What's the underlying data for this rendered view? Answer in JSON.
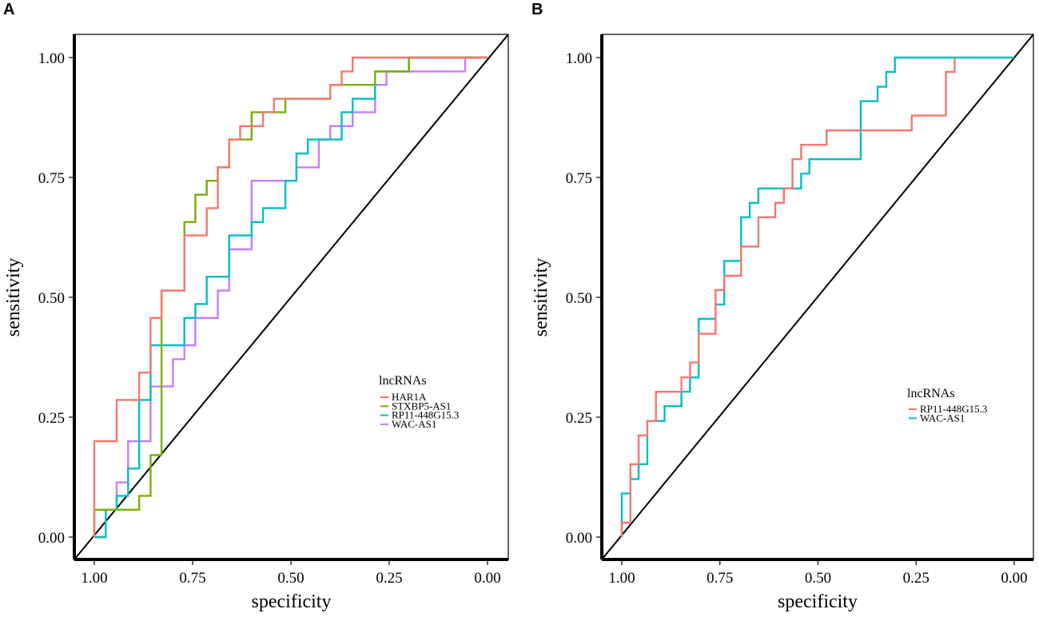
{
  "chart_data": [
    {
      "type": "line",
      "panel_label": "A",
      "xlabel": "specificity",
      "ylabel": "sensitivity",
      "xlim": [
        1.0,
        0.0
      ],
      "ylim": [
        0.0,
        1.0
      ],
      "x_ticks": [
        "1.00",
        "0.75",
        "0.50",
        "0.25",
        "0.00"
      ],
      "y_ticks": [
        "0.00",
        "0.25",
        "0.50",
        "0.75",
        "1.00"
      ],
      "legend_title": "lncRNAs",
      "legend_position": "right",
      "reference_line": true,
      "series": [
        {
          "name": "HAR1A",
          "color": "#F8766D",
          "points": [
            [
              1.0,
              0.0
            ],
            [
              1.0,
              0.2
            ],
            [
              0.943,
              0.2
            ],
            [
              0.943,
              0.286
            ],
            [
              0.886,
              0.286
            ],
            [
              0.886,
              0.343
            ],
            [
              0.857,
              0.343
            ],
            [
              0.857,
              0.457
            ],
            [
              0.829,
              0.457
            ],
            [
              0.829,
              0.514
            ],
            [
              0.771,
              0.514
            ],
            [
              0.771,
              0.629
            ],
            [
              0.714,
              0.629
            ],
            [
              0.714,
              0.686
            ],
            [
              0.686,
              0.686
            ],
            [
              0.686,
              0.771
            ],
            [
              0.657,
              0.771
            ],
            [
              0.657,
              0.829
            ],
            [
              0.629,
              0.829
            ],
            [
              0.629,
              0.857
            ],
            [
              0.571,
              0.857
            ],
            [
              0.571,
              0.886
            ],
            [
              0.543,
              0.886
            ],
            [
              0.543,
              0.914
            ],
            [
              0.4,
              0.914
            ],
            [
              0.4,
              0.943
            ],
            [
              0.371,
              0.943
            ],
            [
              0.371,
              0.971
            ],
            [
              0.343,
              0.971
            ],
            [
              0.343,
              1.0
            ],
            [
              0.0,
              1.0
            ]
          ]
        },
        {
          "name": "STXBP5-AS1",
          "color": "#7CAE00",
          "points": [
            [
              1.0,
              0.0
            ],
            [
              1.0,
              0.057
            ],
            [
              0.886,
              0.057
            ],
            [
              0.886,
              0.086
            ],
            [
              0.857,
              0.086
            ],
            [
              0.857,
              0.171
            ],
            [
              0.829,
              0.171
            ],
            [
              0.829,
              0.514
            ],
            [
              0.771,
              0.514
            ],
            [
              0.771,
              0.657
            ],
            [
              0.743,
              0.657
            ],
            [
              0.743,
              0.714
            ],
            [
              0.714,
              0.714
            ],
            [
              0.714,
              0.743
            ],
            [
              0.686,
              0.743
            ],
            [
              0.686,
              0.771
            ],
            [
              0.657,
              0.771
            ],
            [
              0.657,
              0.829
            ],
            [
              0.6,
              0.829
            ],
            [
              0.6,
              0.886
            ],
            [
              0.514,
              0.886
            ],
            [
              0.514,
              0.914
            ],
            [
              0.4,
              0.914
            ],
            [
              0.4,
              0.943
            ],
            [
              0.286,
              0.943
            ],
            [
              0.286,
              0.971
            ],
            [
              0.2,
              0.971
            ],
            [
              0.2,
              1.0
            ],
            [
              0.0,
              1.0
            ]
          ]
        },
        {
          "name": "RP11-448G15.3",
          "color": "#00BFC4",
          "points": [
            [
              1.0,
              0.0
            ],
            [
              0.971,
              0.0
            ],
            [
              0.971,
              0.057
            ],
            [
              0.943,
              0.057
            ],
            [
              0.943,
              0.086
            ],
            [
              0.914,
              0.086
            ],
            [
              0.914,
              0.143
            ],
            [
              0.886,
              0.143
            ],
            [
              0.886,
              0.286
            ],
            [
              0.857,
              0.286
            ],
            [
              0.857,
              0.4
            ],
            [
              0.771,
              0.4
            ],
            [
              0.771,
              0.457
            ],
            [
              0.743,
              0.457
            ],
            [
              0.743,
              0.486
            ],
            [
              0.714,
              0.486
            ],
            [
              0.714,
              0.543
            ],
            [
              0.657,
              0.543
            ],
            [
              0.657,
              0.629
            ],
            [
              0.6,
              0.629
            ],
            [
              0.6,
              0.657
            ],
            [
              0.571,
              0.657
            ],
            [
              0.571,
              0.686
            ],
            [
              0.514,
              0.686
            ],
            [
              0.514,
              0.743
            ],
            [
              0.486,
              0.743
            ],
            [
              0.486,
              0.8
            ],
            [
              0.457,
              0.8
            ],
            [
              0.457,
              0.829
            ],
            [
              0.371,
              0.829
            ],
            [
              0.371,
              0.886
            ],
            [
              0.343,
              0.886
            ],
            [
              0.343,
              0.914
            ],
            [
              0.286,
              0.914
            ],
            [
              0.286,
              0.971
            ],
            [
              0.2,
              0.971
            ],
            [
              0.2,
              1.0
            ],
            [
              0.0,
              1.0
            ]
          ]
        },
        {
          "name": "WAC-AS1",
          "color": "#C77CFF",
          "points": [
            [
              1.0,
              0.0
            ],
            [
              0.971,
              0.0
            ],
            [
              0.971,
              0.057
            ],
            [
              0.943,
              0.057
            ],
            [
              0.943,
              0.114
            ],
            [
              0.914,
              0.114
            ],
            [
              0.914,
              0.2
            ],
            [
              0.857,
              0.2
            ],
            [
              0.857,
              0.314
            ],
            [
              0.8,
              0.314
            ],
            [
              0.8,
              0.371
            ],
            [
              0.771,
              0.371
            ],
            [
              0.771,
              0.4
            ],
            [
              0.743,
              0.4
            ],
            [
              0.743,
              0.457
            ],
            [
              0.686,
              0.457
            ],
            [
              0.686,
              0.514
            ],
            [
              0.657,
              0.514
            ],
            [
              0.657,
              0.6
            ],
            [
              0.6,
              0.6
            ],
            [
              0.6,
              0.743
            ],
            [
              0.486,
              0.743
            ],
            [
              0.486,
              0.771
            ],
            [
              0.429,
              0.771
            ],
            [
              0.429,
              0.829
            ],
            [
              0.4,
              0.829
            ],
            [
              0.4,
              0.857
            ],
            [
              0.343,
              0.857
            ],
            [
              0.343,
              0.886
            ],
            [
              0.286,
              0.886
            ],
            [
              0.286,
              0.943
            ],
            [
              0.257,
              0.943
            ],
            [
              0.257,
              0.971
            ],
            [
              0.057,
              0.971
            ],
            [
              0.057,
              1.0
            ],
            [
              0.0,
              1.0
            ]
          ]
        }
      ]
    },
    {
      "type": "line",
      "panel_label": "B",
      "xlabel": "specificity",
      "ylabel": "sensitivity",
      "xlim": [
        1.0,
        0.0
      ],
      "ylim": [
        0.0,
        1.0
      ],
      "x_ticks": [
        "1.00",
        "0.75",
        "0.50",
        "0.25",
        "0.00"
      ],
      "y_ticks": [
        "0.00",
        "0.25",
        "0.50",
        "0.75",
        "1.00"
      ],
      "legend_title": "lncRNAs",
      "legend_position": "right",
      "reference_line": true,
      "series": [
        {
          "name": "RP11-448G15.3",
          "color": "#F8766D",
          "points": [
            [
              1.0,
              0.0
            ],
            [
              1.0,
              0.03
            ],
            [
              0.978,
              0.03
            ],
            [
              0.978,
              0.152
            ],
            [
              0.957,
              0.152
            ],
            [
              0.957,
              0.212
            ],
            [
              0.935,
              0.212
            ],
            [
              0.935,
              0.242
            ],
            [
              0.913,
              0.242
            ],
            [
              0.913,
              0.303
            ],
            [
              0.848,
              0.303
            ],
            [
              0.848,
              0.333
            ],
            [
              0.826,
              0.333
            ],
            [
              0.826,
              0.364
            ],
            [
              0.804,
              0.364
            ],
            [
              0.804,
              0.424
            ],
            [
              0.761,
              0.424
            ],
            [
              0.761,
              0.515
            ],
            [
              0.739,
              0.515
            ],
            [
              0.739,
              0.545
            ],
            [
              0.696,
              0.545
            ],
            [
              0.696,
              0.606
            ],
            [
              0.652,
              0.606
            ],
            [
              0.652,
              0.667
            ],
            [
              0.609,
              0.667
            ],
            [
              0.609,
              0.697
            ],
            [
              0.587,
              0.697
            ],
            [
              0.587,
              0.727
            ],
            [
              0.565,
              0.727
            ],
            [
              0.565,
              0.788
            ],
            [
              0.543,
              0.788
            ],
            [
              0.543,
              0.818
            ],
            [
              0.478,
              0.818
            ],
            [
              0.478,
              0.848
            ],
            [
              0.261,
              0.848
            ],
            [
              0.261,
              0.879
            ],
            [
              0.174,
              0.879
            ],
            [
              0.174,
              0.97
            ],
            [
              0.152,
              0.97
            ],
            [
              0.152,
              1.0
            ]
          ]
        },
        {
          "name": "WAC-AS1",
          "color": "#00BFC4",
          "points": [
            [
              1.0,
              0.0
            ],
            [
              1.0,
              0.091
            ],
            [
              0.978,
              0.091
            ],
            [
              0.978,
              0.121
            ],
            [
              0.957,
              0.121
            ],
            [
              0.957,
              0.152
            ],
            [
              0.935,
              0.152
            ],
            [
              0.935,
              0.242
            ],
            [
              0.891,
              0.242
            ],
            [
              0.891,
              0.273
            ],
            [
              0.848,
              0.273
            ],
            [
              0.848,
              0.303
            ],
            [
              0.826,
              0.303
            ],
            [
              0.826,
              0.333
            ],
            [
              0.804,
              0.333
            ],
            [
              0.804,
              0.455
            ],
            [
              0.761,
              0.455
            ],
            [
              0.761,
              0.485
            ],
            [
              0.739,
              0.485
            ],
            [
              0.739,
              0.576
            ],
            [
              0.696,
              0.576
            ],
            [
              0.696,
              0.667
            ],
            [
              0.674,
              0.667
            ],
            [
              0.674,
              0.697
            ],
            [
              0.652,
              0.697
            ],
            [
              0.652,
              0.727
            ],
            [
              0.543,
              0.727
            ],
            [
              0.543,
              0.758
            ],
            [
              0.522,
              0.758
            ],
            [
              0.522,
              0.788
            ],
            [
              0.391,
              0.788
            ],
            [
              0.391,
              0.909
            ],
            [
              0.348,
              0.909
            ],
            [
              0.348,
              0.939
            ],
            [
              0.326,
              0.939
            ],
            [
              0.326,
              0.97
            ],
            [
              0.304,
              0.97
            ],
            [
              0.304,
              1.0
            ],
            [
              0.0,
              1.0
            ]
          ]
        }
      ]
    }
  ]
}
